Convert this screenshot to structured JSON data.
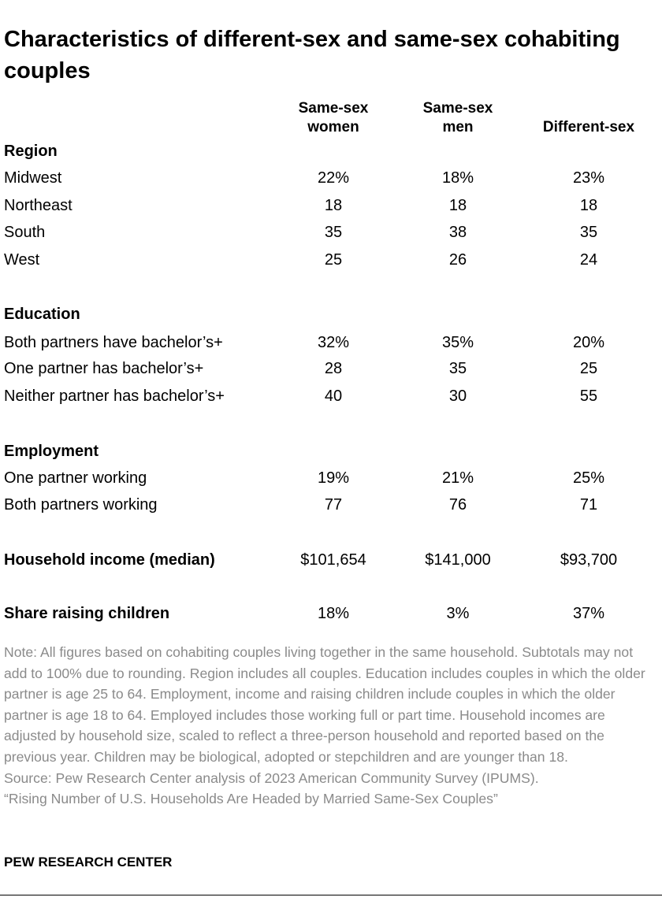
{
  "title": "Characteristics of different-sex and same-sex cohabiting couples",
  "columns": {
    "same_sex_women": [
      "Same-sex",
      "women"
    ],
    "same_sex_men": [
      "Same-sex",
      "men"
    ],
    "different_sex": "Different-sex"
  },
  "sections": {
    "region": {
      "heading": "Region",
      "rows": [
        {
          "label": "Midwest",
          "women": "22%",
          "men": "18%",
          "diff": "23%"
        },
        {
          "label": "Northeast",
          "women": "18",
          "men": "18",
          "diff": "18"
        },
        {
          "label": "South",
          "women": "35",
          "men": "38",
          "diff": "35"
        },
        {
          "label": "West",
          "women": "25",
          "men": "26",
          "diff": "24"
        }
      ]
    },
    "education": {
      "heading": "Education",
      "rows": [
        {
          "label": "Both partners have bachelor’s+",
          "women": "32%",
          "men": "35%",
          "diff": "20%"
        },
        {
          "label": "One partner has bachelor’s+",
          "women": "28",
          "men": "35",
          "diff": "25"
        },
        {
          "label": "Neither partner has bachelor’s+",
          "women": "40",
          "men": "30",
          "diff": "55"
        }
      ]
    },
    "employment": {
      "heading": "Employment",
      "rows": [
        {
          "label": "One partner working",
          "women": "19%",
          "men": "21%",
          "diff": "25%"
        },
        {
          "label": "Both partners working",
          "women": "77",
          "men": "76",
          "diff": "71"
        }
      ]
    },
    "income": {
      "label": "Household income (median)",
      "women": "$101,654",
      "men": "$141,000",
      "diff": "$93,700"
    },
    "children": {
      "label": "Share raising children",
      "women": "18%",
      "men": "3%",
      "diff": "37%"
    }
  },
  "note": "Note: All figures based on cohabiting couples living together in the same household. Subtotals may not add to 100% due to rounding. Region includes all couples. Education includes couples in which the older partner is age 25 to 64. Employment, income and raising children include couples in which the older partner is age 18 to 64. Employed includes those working full or part time. Household incomes are adjusted by household size, scaled to reflect a three-person household and reported based on the previous year. Children may be biological, adopted or stepchildren and are younger than 18.",
  "source": "Source: Pew Research Center analysis of 2023 American Community Survey (IPUMS).",
  "report_title": "“Rising Number of U.S. Households Are Headed by Married Same-Sex Couples”",
  "brand": "PEW RESEARCH CENTER"
}
